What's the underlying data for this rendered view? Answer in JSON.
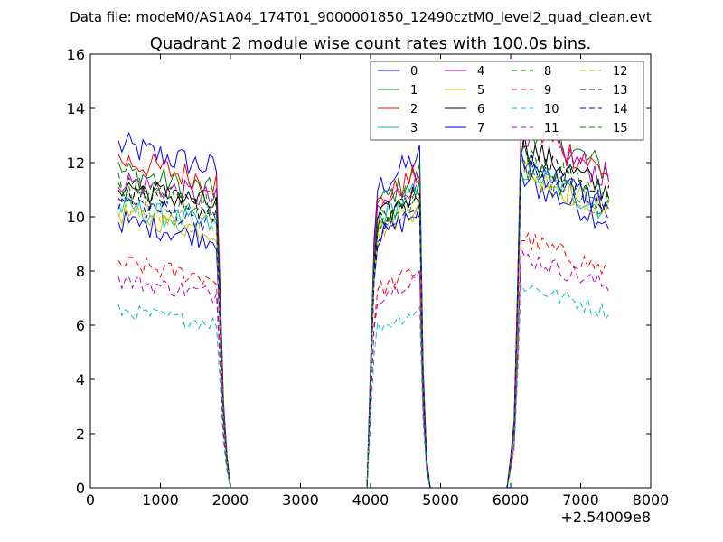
{
  "header": {
    "data_file": "Data file: modeM0/AS1A04_174T01_9000001850_12490cztM0_level2_quad_clean.evt"
  },
  "chart_data": {
    "type": "line",
    "title": "Quadrant 2 module wise count rates with 100.0s bins.",
    "xlabel": "",
    "ylabel": "",
    "x_offset_label": "+2.54009e8",
    "xlim": [
      0,
      8000
    ],
    "ylim": [
      0,
      16
    ],
    "xticks": [
      0,
      1000,
      2000,
      3000,
      4000,
      5000,
      6000,
      7000,
      8000
    ],
    "yticks": [
      0,
      2,
      4,
      6,
      8,
      10,
      12,
      14,
      16
    ],
    "grid": false,
    "legend_position": "top-right",
    "segments": [
      {
        "start": 400,
        "end": 1800,
        "step": 50,
        "fall": [
          1850,
          1900,
          1950,
          2000
        ],
        "fall_fracs": [
          0.62,
          0.26,
          0.1,
          0.0
        ]
      },
      {
        "start": 4100,
        "end": 4700,
        "step": 50,
        "rise": [
          3950,
          4000,
          4050
        ],
        "rise_fracs": [
          0.0,
          0.4,
          0.8
        ],
        "fall": [
          4750,
          4800,
          4850
        ],
        "fall_fracs": [
          0.4,
          0.1,
          0.0
        ]
      },
      {
        "start": 6150,
        "end": 7400,
        "step": 50,
        "rise": [
          5950,
          6000,
          6050,
          6100
        ],
        "rise_fracs": [
          0.0,
          0.09,
          0.2,
          0.6
        ]
      }
    ],
    "zero_x": [
      2000,
      3950,
      4850,
      5950
    ],
    "series": [
      {
        "name": "0",
        "color": "#0000ff",
        "dash": false,
        "levels": [
          12.2,
          11.4,
          10.6
        ]
      },
      {
        "name": "1",
        "color": "#008000",
        "dash": false,
        "levels": [
          11.3,
          10.8,
          12.6
        ]
      },
      {
        "name": "2",
        "color": "#ff0000",
        "dash": false,
        "levels": [
          11.7,
          10.8,
          12.5
        ]
      },
      {
        "name": "3",
        "color": "#00bfbf",
        "dash": false,
        "levels": [
          10.0,
          10.2,
          11.0
        ]
      },
      {
        "name": "4",
        "color": "#bf00bf",
        "dash": false,
        "levels": [
          11.0,
          10.6,
          12.3
        ]
      },
      {
        "name": "5",
        "color": "#bfbf00",
        "dash": false,
        "levels": [
          9.8,
          9.8,
          11.0
        ]
      },
      {
        "name": "6",
        "color": "#000000",
        "dash": false,
        "levels": [
          10.8,
          10.2,
          11.8
        ]
      },
      {
        "name": "7",
        "color": "#0000ff",
        "dash": false,
        "levels": [
          9.5,
          9.5,
          11.2
        ]
      },
      {
        "name": "8",
        "color": "#008000",
        "dash": true,
        "levels": [
          10.5,
          10.1,
          11.0
        ]
      },
      {
        "name": "9",
        "color": "#ff0000",
        "dash": true,
        "levels": [
          8.0,
          7.5,
          8.6
        ]
      },
      {
        "name": "10",
        "color": "#00bfbf",
        "dash": true,
        "levels": [
          6.3,
          6.1,
          7.0
        ]
      },
      {
        "name": "11",
        "color": "#bf00bf",
        "dash": true,
        "levels": [
          7.4,
          7.3,
          8.0
        ]
      },
      {
        "name": "12",
        "color": "#bfbf00",
        "dash": true,
        "levels": [
          10.0,
          9.6,
          11.0
        ]
      },
      {
        "name": "13",
        "color": "#000000",
        "dash": true,
        "levels": [
          10.6,
          10.0,
          11.5
        ]
      },
      {
        "name": "14",
        "color": "#0000ff",
        "dash": true,
        "levels": [
          10.2,
          9.6,
          11.2
        ]
      },
      {
        "name": "15",
        "color": "#008000",
        "dash": true,
        "levels": [
          10.8,
          10.3,
          11.5
        ]
      }
    ]
  }
}
